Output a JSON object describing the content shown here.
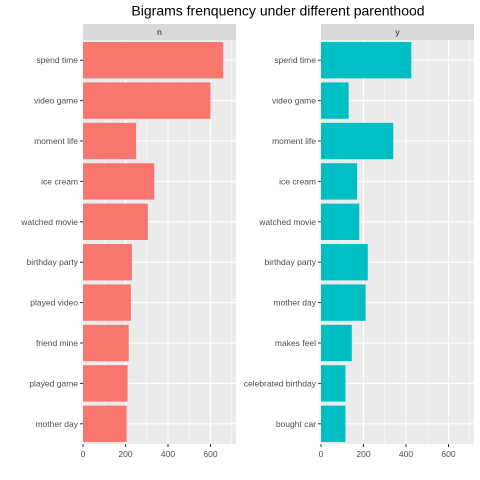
{
  "chart_data": {
    "type": "bar",
    "title": "Bigrams frenquency under different parenthood",
    "xlabel": "",
    "ylabel": "",
    "xlim": [
      0,
      720
    ],
    "xticks": [
      0,
      200,
      400,
      600
    ],
    "grid": true,
    "legend": "none",
    "panels": [
      {
        "strip": "n",
        "color": "#F8766D",
        "categories": [
          "spend time",
          "video game",
          "moment life",
          "ice cream",
          "watched movie",
          "birthday party",
          "played video",
          "friend mine",
          "played game",
          "mother day"
        ],
        "values": [
          660,
          600,
          250,
          335,
          305,
          230,
          225,
          215,
          210,
          205
        ]
      },
      {
        "strip": "y",
        "color": "#00BFC4",
        "categories": [
          "spend time",
          "video game",
          "moment life",
          "ice cream",
          "watched movie",
          "birthday party",
          "mother day",
          "makes feel",
          "celebrated birthday",
          "bought car"
        ],
        "values": [
          425,
          130,
          340,
          170,
          180,
          220,
          210,
          145,
          115,
          115
        ]
      }
    ]
  },
  "colors": {
    "panel_background": "#EBEBEB",
    "grid_major": "#FFFFFF",
    "strip_background": "#D9D9D9",
    "tick_text": "#4D4D4D"
  }
}
